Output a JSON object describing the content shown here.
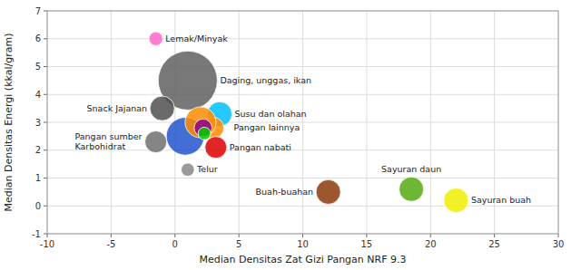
{
  "chart_data": {
    "type": "bubble",
    "title": "",
    "xlabel": "Median Densitas Zat Gizi Pangan NRF 9.3",
    "ylabel": "Median Densitas Energi (kkal/gram)",
    "xlim": [
      -10,
      30
    ],
    "ylim": [
      -1,
      7
    ],
    "xticks": [
      -10,
      -5,
      0,
      5,
      10,
      15,
      20,
      25,
      30
    ],
    "yticks": [
      -1,
      0,
      1,
      2,
      3,
      4,
      5,
      6,
      7
    ],
    "grid": true,
    "labels": [
      "Lemak/Minyak",
      "Daging, unggas, ikan",
      "Snack Jajanan",
      "Pangan sumber\nKarbohidrat",
      "Susu dan olahan",
      "Pangan lainnya",
      null,
      null,
      null,
      null,
      "Telur",
      "Pangan nabati",
      "Buah-buahan",
      "Sayuran daun",
      "Sayuran buah"
    ],
    "x": [
      -1.5,
      1.0,
      -1.0,
      -1.5,
      3.5,
      3.0,
      0.8,
      2.0,
      2.2,
      2.3,
      1.0,
      3.2,
      12.0,
      18.5,
      22.0
    ],
    "values": [
      6.0,
      4.5,
      3.5,
      2.3,
      3.3,
      2.8,
      2.5,
      3.0,
      2.8,
      2.6,
      1.3,
      2.1,
      0.5,
      0.6,
      0.2
    ],
    "sizes": [
      120,
      2200,
      380,
      300,
      380,
      280,
      900,
      600,
      200,
      100,
      110,
      300,
      380,
      380,
      380
    ],
    "colors": [
      "#FF66CC",
      "#606060",
      "#505050",
      "#707070",
      "#00BFFF",
      "#FF8C00",
      "#2255CC",
      "#FF8C00",
      "#8B008B",
      "#00CC00",
      "#888888",
      "#DD0000",
      "#8B3A0A",
      "#55AA10",
      "#EEEE00"
    ]
  }
}
